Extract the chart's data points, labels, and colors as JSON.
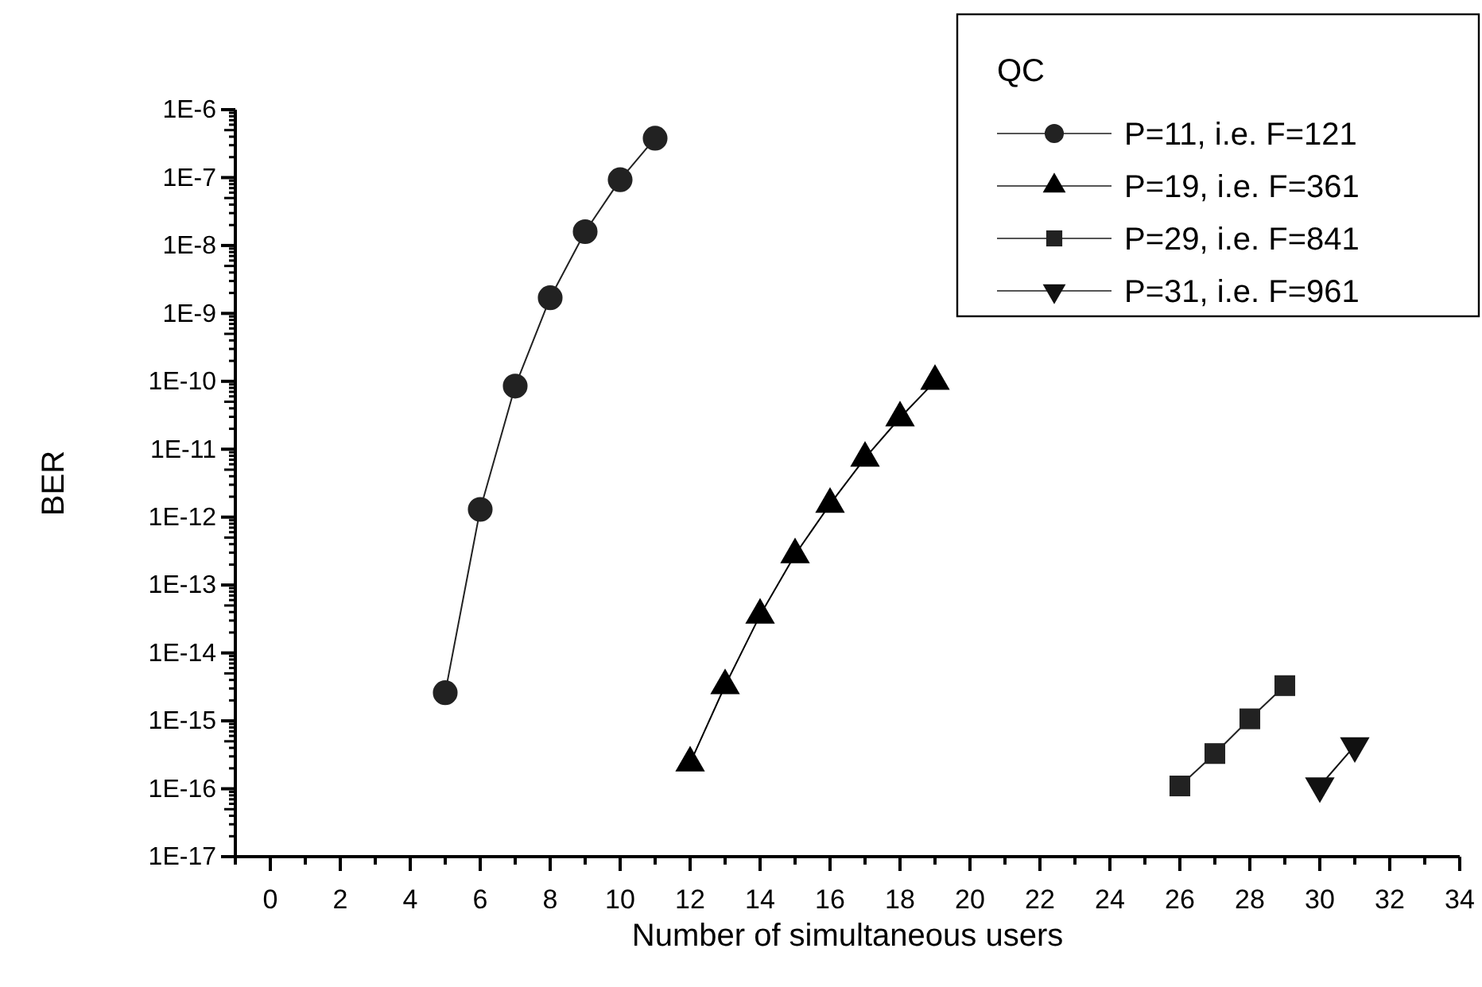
{
  "chart_data": {
    "type": "line",
    "xlabel": "Number of simultaneous users",
    "ylabel": "BER",
    "legend_title": "QC",
    "legend": "top right",
    "log": "y",
    "grid": false,
    "line_style": "solid",
    "xlim": [
      -1,
      34
    ],
    "xticks": [
      0,
      2,
      4,
      6,
      8,
      10,
      12,
      14,
      16,
      18,
      20,
      22,
      24,
      26,
      28,
      30,
      32,
      34
    ],
    "ylim": [
      1e-17,
      1e-06
    ],
    "yticks": [
      {
        "value": 1e-17,
        "label": "1E-17"
      },
      {
        "value": 1e-16,
        "label": "1E-16"
      },
      {
        "value": 1e-15,
        "label": "1E-15"
      },
      {
        "value": 1e-14,
        "label": "1E-14"
      },
      {
        "value": 1e-13,
        "label": "1E-13"
      },
      {
        "value": 1e-12,
        "label": "1E-12"
      },
      {
        "value": 1e-11,
        "label": "1E-11"
      },
      {
        "value": 1e-10,
        "label": "1E-10"
      },
      {
        "value": 1e-09,
        "label": "1E-9"
      },
      {
        "value": 1e-08,
        "label": "1E-8"
      },
      {
        "value": 1e-07,
        "label": "1E-7"
      },
      {
        "value": 1e-06,
        "label": "1E-6"
      }
    ],
    "series": [
      {
        "name": "P=11, i.e. F=121",
        "color": "#222222",
        "marker": "circle",
        "x": [
          5,
          6,
          7,
          8,
          9,
          10,
          11
        ],
        "values": [
          2.6e-15,
          1.3e-12,
          8.5e-11,
          1.7e-09,
          1.6e-08,
          9.3e-08,
          3.8e-07
        ]
      },
      {
        "name": "P=19, i.e. F=361",
        "color": "#000000",
        "marker": "triangle",
        "x": [
          12,
          13,
          14,
          15,
          16,
          17,
          18,
          19
        ],
        "values": [
          2.4e-16,
          3.3e-15,
          3.6e-14,
          2.8e-13,
          1.55e-12,
          7.4e-12,
          2.9e-11,
          1e-10
        ]
      },
      {
        "name": "P=29, i.e. F=841",
        "color": "#222222",
        "marker": "square",
        "x": [
          26,
          27,
          28,
          29
        ],
        "values": [
          1.1e-16,
          3.3e-16,
          1.07e-15,
          3.3e-15
        ]
      },
      {
        "name": "P=31, i.e. F=961",
        "color": "#111111",
        "marker": "triangle-down",
        "x": [
          30,
          31
        ],
        "values": [
          1.1e-16,
          4.3e-16
        ]
      }
    ]
  }
}
